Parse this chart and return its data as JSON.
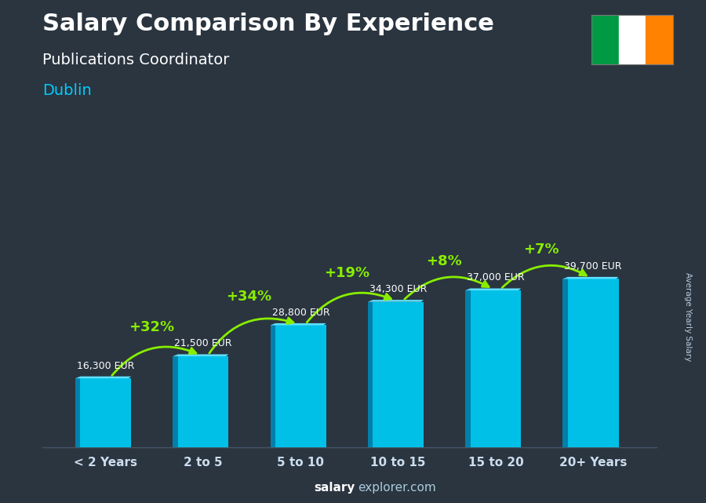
{
  "title_line1": "Salary Comparison By Experience",
  "title_line2": "Publications Coordinator",
  "city": "Dublin",
  "watermark_bold": "salary",
  "watermark_normal": "explorer.com",
  "ylabel": "Average Yearly Salary",
  "categories": [
    "< 2 Years",
    "2 to 5",
    "5 to 10",
    "10 to 15",
    "15 to 20",
    "20+ Years"
  ],
  "values": [
    16300,
    21500,
    28800,
    34300,
    37000,
    39700
  ],
  "labels": [
    "16,300 EUR",
    "21,500 EUR",
    "28,800 EUR",
    "34,300 EUR",
    "37,000 EUR",
    "39,700 EUR"
  ],
  "pct_labels": [
    "+32%",
    "+34%",
    "+19%",
    "+8%",
    "+7%"
  ],
  "bar_face_color": "#00C0E8",
  "bar_left_color": "#0080AA",
  "bar_top_color": "#60E0FF",
  "bg_overlay_color": "#2a3540",
  "bg_overlay_alpha": 0.55,
  "title_color": "#ffffff",
  "subtitle_color": "#ffffff",
  "city_color": "#00CCFF",
  "label_color": "#ffffff",
  "pct_color": "#88EE00",
  "watermark_bold_color": "#ffffff",
  "watermark_normal_color": "#aaccdd",
  "axis_label_color": "#bbccdd",
  "tick_color": "#ccddee",
  "flag_green": "#009A44",
  "flag_white": "#ffffff",
  "flag_orange": "#FF8200",
  "spine_color": "#445566",
  "title_fontsize": 22,
  "subtitle_fontsize": 14,
  "city_fontsize": 14,
  "tick_fontsize": 11,
  "label_fontsize": 9,
  "pct_fontsize": 13,
  "watermark_fontsize": 11
}
